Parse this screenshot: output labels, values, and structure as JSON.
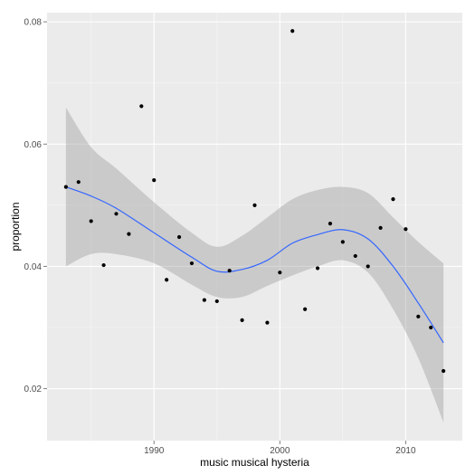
{
  "chart_data": {
    "type": "scatter",
    "xlabel": "music musical hysteria",
    "ylabel": "proportion",
    "xlim": [
      1981.5,
      2014.5
    ],
    "ylim": [
      0.0115,
      0.0815
    ],
    "x_ticks": [
      1990,
      2000,
      2010
    ],
    "x_tick_labels": [
      "1990",
      "2000",
      "2010"
    ],
    "y_ticks": [
      0.02,
      0.04,
      0.06,
      0.08
    ],
    "y_tick_labels": [
      "0.02",
      "0.04",
      "0.06",
      "0.08"
    ],
    "grid": true,
    "legend": "none",
    "points": [
      {
        "x": 1983,
        "y": 0.053
      },
      {
        "x": 1984,
        "y": 0.0538
      },
      {
        "x": 1985,
        "y": 0.0474
      },
      {
        "x": 1986,
        "y": 0.0402
      },
      {
        "x": 1987,
        "y": 0.0486
      },
      {
        "x": 1988,
        "y": 0.0453
      },
      {
        "x": 1989,
        "y": 0.0662
      },
      {
        "x": 1990,
        "y": 0.0541
      },
      {
        "x": 1991,
        "y": 0.0378
      },
      {
        "x": 1992,
        "y": 0.0448
      },
      {
        "x": 1993,
        "y": 0.0405
      },
      {
        "x": 1994,
        "y": 0.0345
      },
      {
        "x": 1995,
        "y": 0.0343
      },
      {
        "x": 1996,
        "y": 0.0393
      },
      {
        "x": 1997,
        "y": 0.0312
      },
      {
        "x": 1998,
        "y": 0.05
      },
      {
        "x": 1999,
        "y": 0.0308
      },
      {
        "x": 2000,
        "y": 0.039
      },
      {
        "x": 2001,
        "y": 0.0785
      },
      {
        "x": 2002,
        "y": 0.033
      },
      {
        "x": 2003,
        "y": 0.0397
      },
      {
        "x": 2004,
        "y": 0.047
      },
      {
        "x": 2005,
        "y": 0.044
      },
      {
        "x": 2006,
        "y": 0.0417
      },
      {
        "x": 2007,
        "y": 0.04
      },
      {
        "x": 2008,
        "y": 0.0463
      },
      {
        "x": 2009,
        "y": 0.051
      },
      {
        "x": 2010,
        "y": 0.0461
      },
      {
        "x": 2011,
        "y": 0.0318
      },
      {
        "x": 2012,
        "y": 0.03
      },
      {
        "x": 2013,
        "y": 0.0229
      }
    ],
    "smooth": {
      "x": [
        1983,
        1985,
        1987,
        1990,
        1993,
        1995,
        1997,
        1999,
        2001,
        2003,
        2005,
        2007,
        2009,
        2011,
        2013
      ],
      "y": [
        0.053,
        0.0515,
        0.0495,
        0.0455,
        0.0415,
        0.0392,
        0.0395,
        0.041,
        0.0438,
        0.0452,
        0.046,
        0.0445,
        0.04,
        0.034,
        0.0275
      ],
      "lower": [
        0.04,
        0.042,
        0.042,
        0.0405,
        0.037,
        0.035,
        0.035,
        0.0368,
        0.0385,
        0.04,
        0.041,
        0.039,
        0.033,
        0.025,
        0.0145
      ],
      "upper": [
        0.066,
        0.0595,
        0.056,
        0.0505,
        0.0455,
        0.0432,
        0.045,
        0.048,
        0.051,
        0.0525,
        0.053,
        0.052,
        0.048,
        0.044,
        0.0405
      ]
    },
    "colors": {
      "panel": "#ebebeb",
      "grid_major": "#ffffff",
      "grid_minor": "#f5f5f5",
      "point": "#000000",
      "line": "#3366ff",
      "ribbon": "#999999"
    }
  }
}
